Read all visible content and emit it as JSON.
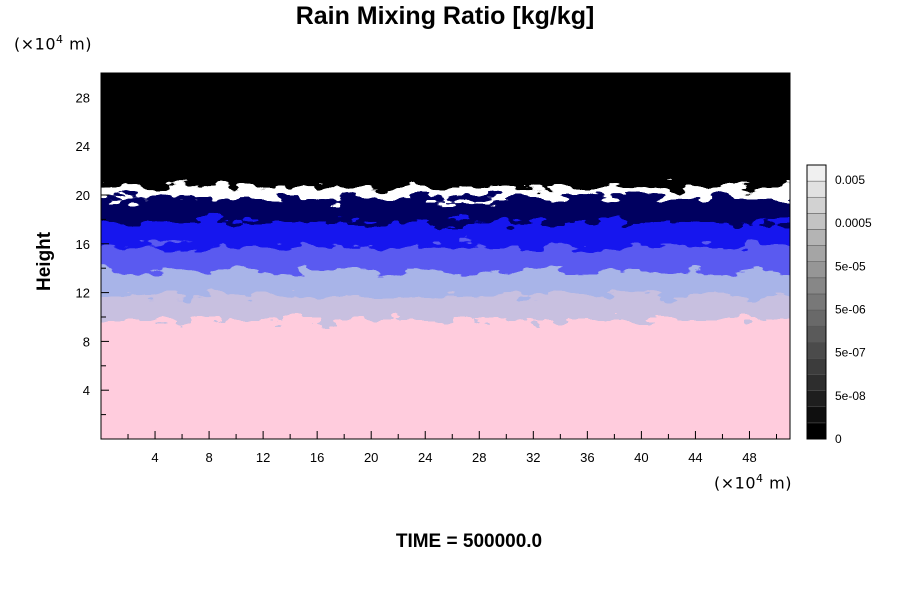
{
  "chart_data": {
    "type": "heatmap",
    "title": "Rain Mixing Ratio [kg/kg]",
    "ylabel": "Height",
    "x_unit_prefix": "(×10",
    "x_unit_exp": "4",
    "x_unit_suffix": " m)",
    "y_unit_prefix": "(×10",
    "y_unit_exp": "4",
    "y_unit_suffix": " m)",
    "xlim": [
      0,
      51
    ],
    "ylim": [
      0,
      30
    ],
    "x_ticks": [
      4,
      8,
      12,
      16,
      20,
      24,
      28,
      32,
      36,
      40,
      44,
      48
    ],
    "y_ticks": [
      4,
      8,
      12,
      16,
      20,
      24,
      28
    ],
    "layers": [
      {
        "range": [
          0,
          10
        ],
        "color": "#ffccdd"
      },
      {
        "range": [
          10,
          12
        ],
        "color": "#c8c0e0"
      },
      {
        "range": [
          12,
          14
        ],
        "color": "#a8b4e8"
      },
      {
        "range": [
          14,
          16
        ],
        "color": "#5a5af0"
      },
      {
        "range": [
          16,
          18
        ],
        "color": "#1616ee"
      },
      {
        "range": [
          18,
          19.5
        ],
        "color": "#000060"
      },
      {
        "range": [
          19.5,
          30
        ],
        "color": "#000000"
      }
    ],
    "colorbar": {
      "labels": [
        "0.005",
        "0.0005",
        "5e-05",
        "5e-06",
        "5e-07",
        "5e-08",
        "0"
      ],
      "levels": 17,
      "min_gray": "#000000",
      "max_gray": "#f0f0f0"
    },
    "footer": "TIME = 500000.0"
  }
}
